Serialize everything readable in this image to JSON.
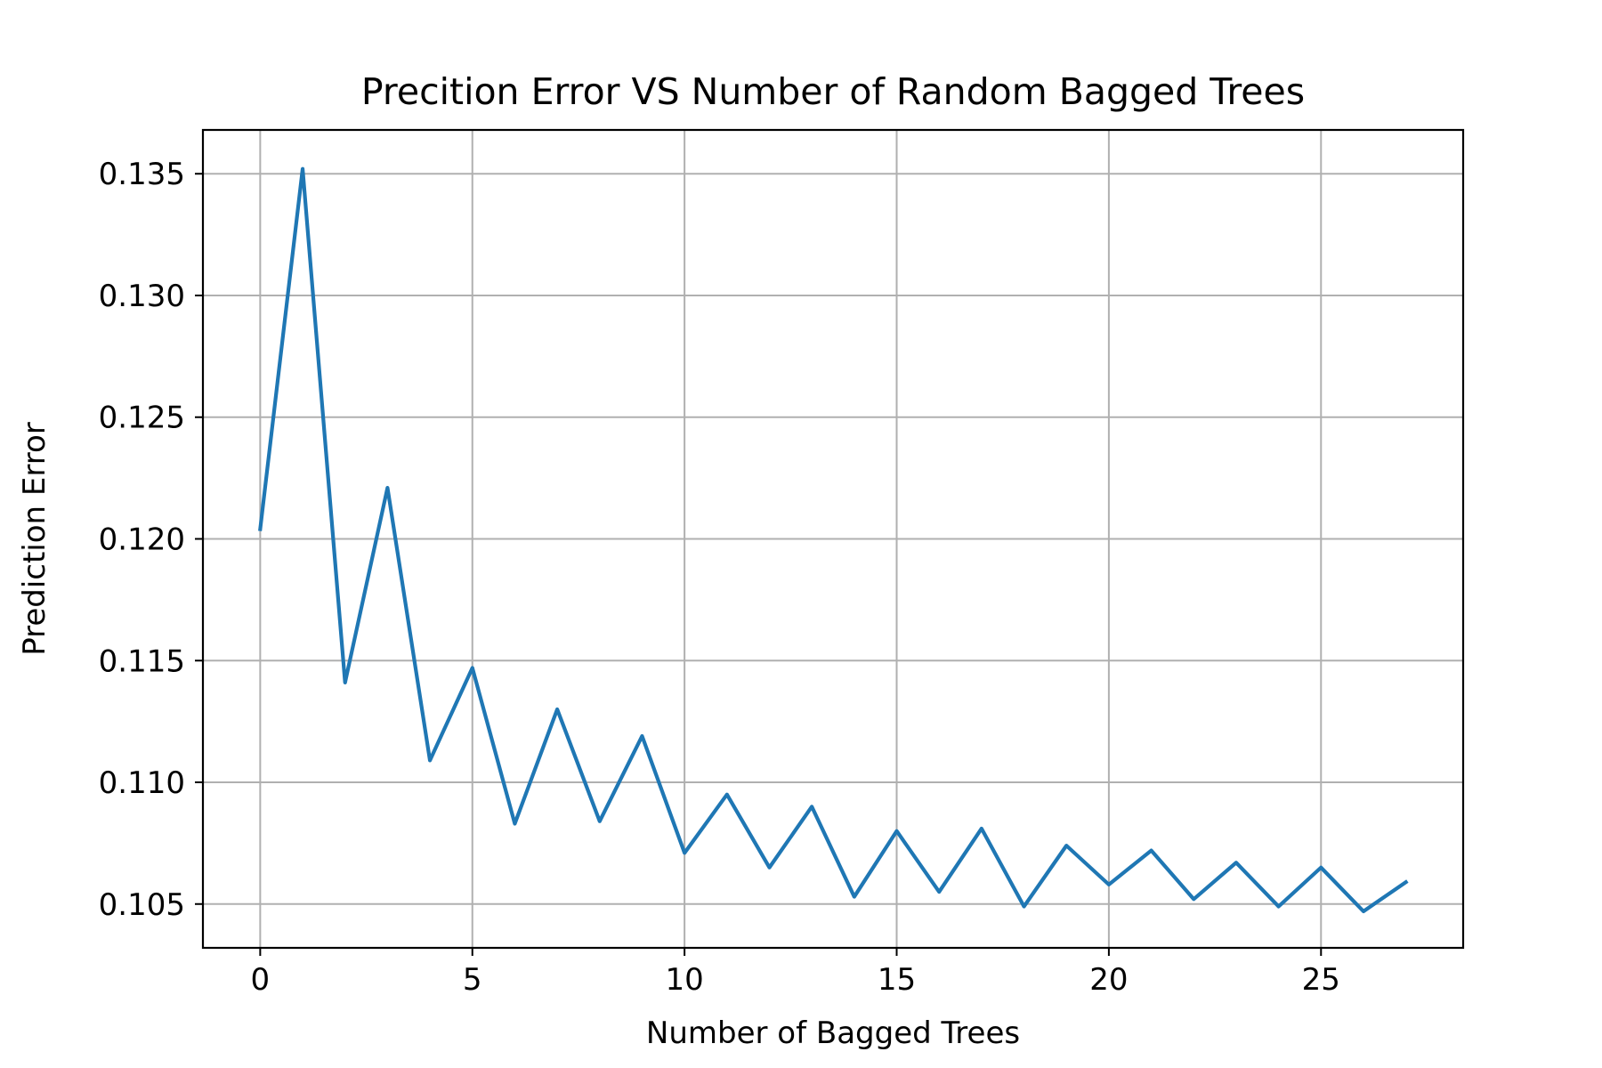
{
  "chart_data": {
    "type": "line",
    "title": "Precition Error VS Number of Random Bagged Trees",
    "xlabel": "Number of Bagged Trees",
    "ylabel": "Prediction Error",
    "xlim": [
      -1.35,
      28.35
    ],
    "ylim": [
      0.1032,
      0.1368
    ],
    "x_ticks": [
      0,
      5,
      10,
      15,
      20,
      25
    ],
    "x_tick_labels": [
      "0",
      "5",
      "10",
      "15",
      "20",
      "25"
    ],
    "y_ticks": [
      0.105,
      0.11,
      0.115,
      0.12,
      0.125,
      0.13,
      0.135
    ],
    "y_tick_labels": [
      "0.105",
      "0.110",
      "0.115",
      "0.120",
      "0.125",
      "0.130",
      "0.135"
    ],
    "grid": true,
    "legend": false,
    "series": [
      {
        "color": "#1f77b4",
        "x": [
          0,
          1,
          2,
          3,
          4,
          5,
          6,
          7,
          8,
          9,
          10,
          11,
          12,
          13,
          14,
          15,
          16,
          17,
          18,
          19,
          20,
          21,
          22,
          23,
          24,
          25,
          26,
          27
        ],
        "y": [
          0.1204,
          0.1352,
          0.1141,
          0.1221,
          0.1109,
          0.1147,
          0.1083,
          0.113,
          0.1084,
          0.1119,
          0.1071,
          0.1095,
          0.1065,
          0.109,
          0.1053,
          0.108,
          0.1055,
          0.1081,
          0.1049,
          0.1074,
          0.1058,
          0.1072,
          0.1052,
          0.1067,
          0.1049,
          0.1065,
          0.1047,
          0.1059
        ]
      }
    ]
  }
}
